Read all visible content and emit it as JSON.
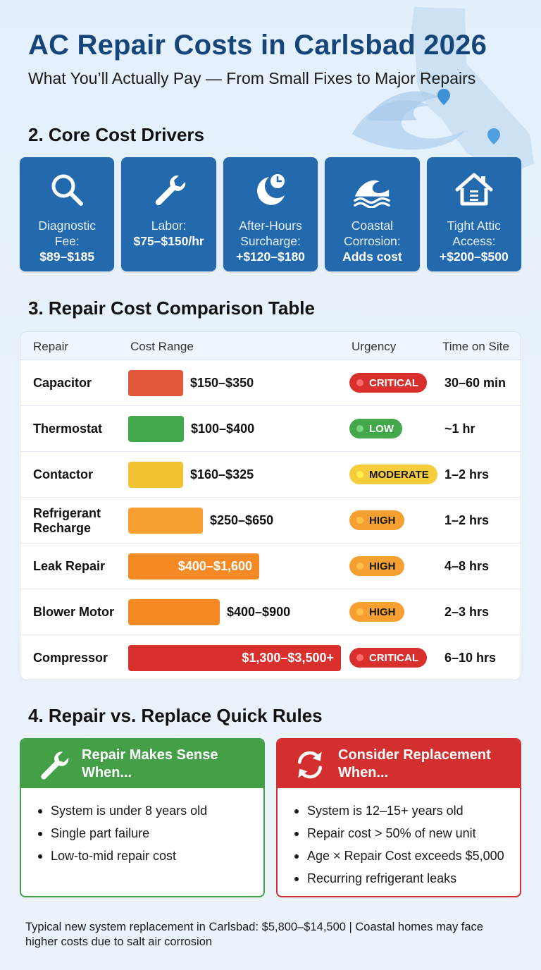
{
  "header": {
    "title": "AC Repair Costs in Carlsbad 2026",
    "subtitle": "What You’ll Actually Pay — From Small Fixes to Major Repairs"
  },
  "sections": {
    "drivers_title": "2. Core Cost Drivers",
    "table_title": "3. Repair Cost Comparison Table",
    "rules_title": "4. Repair vs. Replace Quick Rules"
  },
  "drivers": [
    {
      "icon": "magnifier-icon",
      "label": "Diagnostic\nFee:",
      "value": "$89–$185"
    },
    {
      "icon": "wrench-icon",
      "label": "Labor:",
      "value": "$75–$150/hr"
    },
    {
      "icon": "moon-clock-icon",
      "label": "After-Hours\nSurcharge:",
      "value": "+$120–$180"
    },
    {
      "icon": "wave-icon",
      "label": "Coastal\nCorrosion:",
      "value": "Adds cost"
    },
    {
      "icon": "house-icon",
      "label": "Tight Attic\nAccess:",
      "value": "+$200–$500"
    }
  ],
  "table": {
    "headers": {
      "repair": "Repair",
      "cost": "Cost Range",
      "urgency": "Urgency",
      "time": "Time on Site"
    },
    "rows": [
      {
        "repair": "Capacitor",
        "cost": "$150–$350",
        "low": 150,
        "high": 350,
        "bar_color": "#e0573a",
        "urgency": "CRITICAL",
        "time": "30–60 min"
      },
      {
        "repair": "Thermostat",
        "cost": "$100–$400",
        "low": 100,
        "high": 400,
        "bar_color": "#43a84a",
        "urgency": "LOW",
        "time": "~1 hr"
      },
      {
        "repair": "Contactor",
        "cost": "$160–$325",
        "low": 160,
        "high": 325,
        "bar_color": "#f2c232",
        "urgency": "MODERATE",
        "time": "1–2 hrs"
      },
      {
        "repair": "Refrigerant Recharge",
        "cost": "$250–$650",
        "low": 250,
        "high": 650,
        "bar_color": "#f5a030",
        "urgency": "HIGH",
        "time": "1–2 hrs"
      },
      {
        "repair": "Leak Repair",
        "cost": "$400–$1,600",
        "low": 400,
        "high": 1600,
        "bar_color": "#f58a24",
        "urgency": "HIGH",
        "time": "4–8 hrs"
      },
      {
        "repair": "Blower Motor",
        "cost": "$400–$900",
        "low": 400,
        "high": 900,
        "bar_color": "#f58a24",
        "urgency": "HIGH",
        "time": "2–3 hrs"
      },
      {
        "repair": "Compressor",
        "cost": "$1,300–$3,500+",
        "low": 1300,
        "high": 3500,
        "bar_color": "#d9302e",
        "urgency": "CRITICAL",
        "time": "6–10 hrs"
      }
    ]
  },
  "urgency_styles": {
    "CRITICAL": {
      "bg": "#d9302e",
      "fg": "#ffffff",
      "dot": "#ff6b6b"
    },
    "LOW": {
      "bg": "#43a84a",
      "fg": "#ffffff",
      "dot": "#7ad67f"
    },
    "MODERATE": {
      "bg": "#f5cc3a",
      "fg": "#1a1a1a",
      "dot": "#fff14a"
    },
    "HIGH": {
      "bg": "#f5a030",
      "fg": "#1a1a1a",
      "dot": "#ffc04a"
    }
  },
  "rules": {
    "repair": {
      "title": "Repair Makes Sense When...",
      "items": [
        "System is under 8 years old",
        "Single part failure",
        "Low-to-mid repair cost"
      ]
    },
    "replace": {
      "title": "Consider Replacement When...",
      "items": [
        "System is 12–15+ years old",
        "Repair cost > 50% of new unit",
        "Age × Repair Cost exceeds $5,000",
        "Recurring refrigerant leaks"
      ]
    }
  },
  "footer": "Typical new system replacement in Carlsbad: $5,800–$14,500 | Coastal homes may face higher costs due to salt air corrosion"
}
